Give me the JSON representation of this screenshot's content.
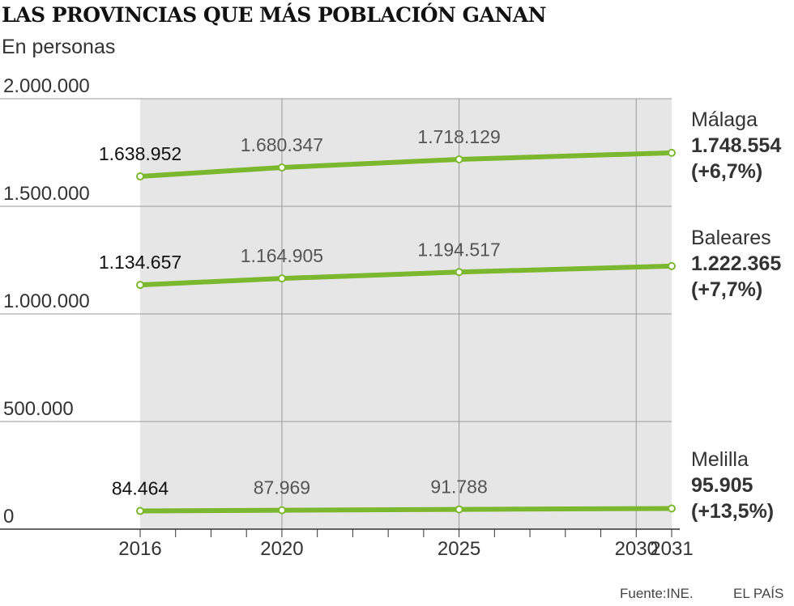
{
  "title": "LAS PROVINCIAS QUE MÁS POBLACIÓN GANAN",
  "subtitle": "En personas",
  "source": "Fuente:INE.",
  "credit": "EL PAÍS",
  "colors": {
    "line": "#7cb82f",
    "shade": "#e6e6e6",
    "grid": "#999999",
    "axis": "#333333"
  },
  "chart_data": {
    "type": "line",
    "title": "LAS PROVINCIAS QUE MÁS POBLACIÓN GANAN",
    "ylabel": "En personas",
    "xlabel": "",
    "ylim": [
      0,
      2000000
    ],
    "xlim": [
      2016,
      2031
    ],
    "yticks": [
      0,
      500000,
      1000000,
      1500000,
      2000000
    ],
    "ytick_labels": [
      "0",
      "500.000",
      "1.000.000",
      "1.500.000",
      "2.000.000"
    ],
    "xticks": [
      2016,
      2020,
      2025,
      2030,
      2031
    ],
    "xtick_labels": [
      "2016",
      "2020",
      "2025",
      "2030",
      "2031"
    ],
    "grid": true,
    "series": [
      {
        "name": "Málaga",
        "x": [
          2016,
          2020,
          2025,
          2031
        ],
        "values": [
          1638952,
          1680347,
          1718129,
          1748554
        ],
        "labels": [
          "1.638.952",
          "1.680.347",
          "1.718.129"
        ],
        "final_label": "1.748.554",
        "change": "(+6,7%)"
      },
      {
        "name": "Baleares",
        "x": [
          2016,
          2020,
          2025,
          2031
        ],
        "values": [
          1134657,
          1164905,
          1194517,
          1222365
        ],
        "labels": [
          "1.134.657",
          "1.164.905",
          "1.194.517"
        ],
        "final_label": "1.222.365",
        "change": "(+7,7%)"
      },
      {
        "name": "Melilla",
        "x": [
          2016,
          2020,
          2025,
          2031
        ],
        "values": [
          84464,
          87969,
          91788,
          95905
        ],
        "labels": [
          "84.464",
          "87.969",
          "91.788"
        ],
        "final_label": "95.905",
        "change": "(+13,5%)"
      }
    ]
  }
}
